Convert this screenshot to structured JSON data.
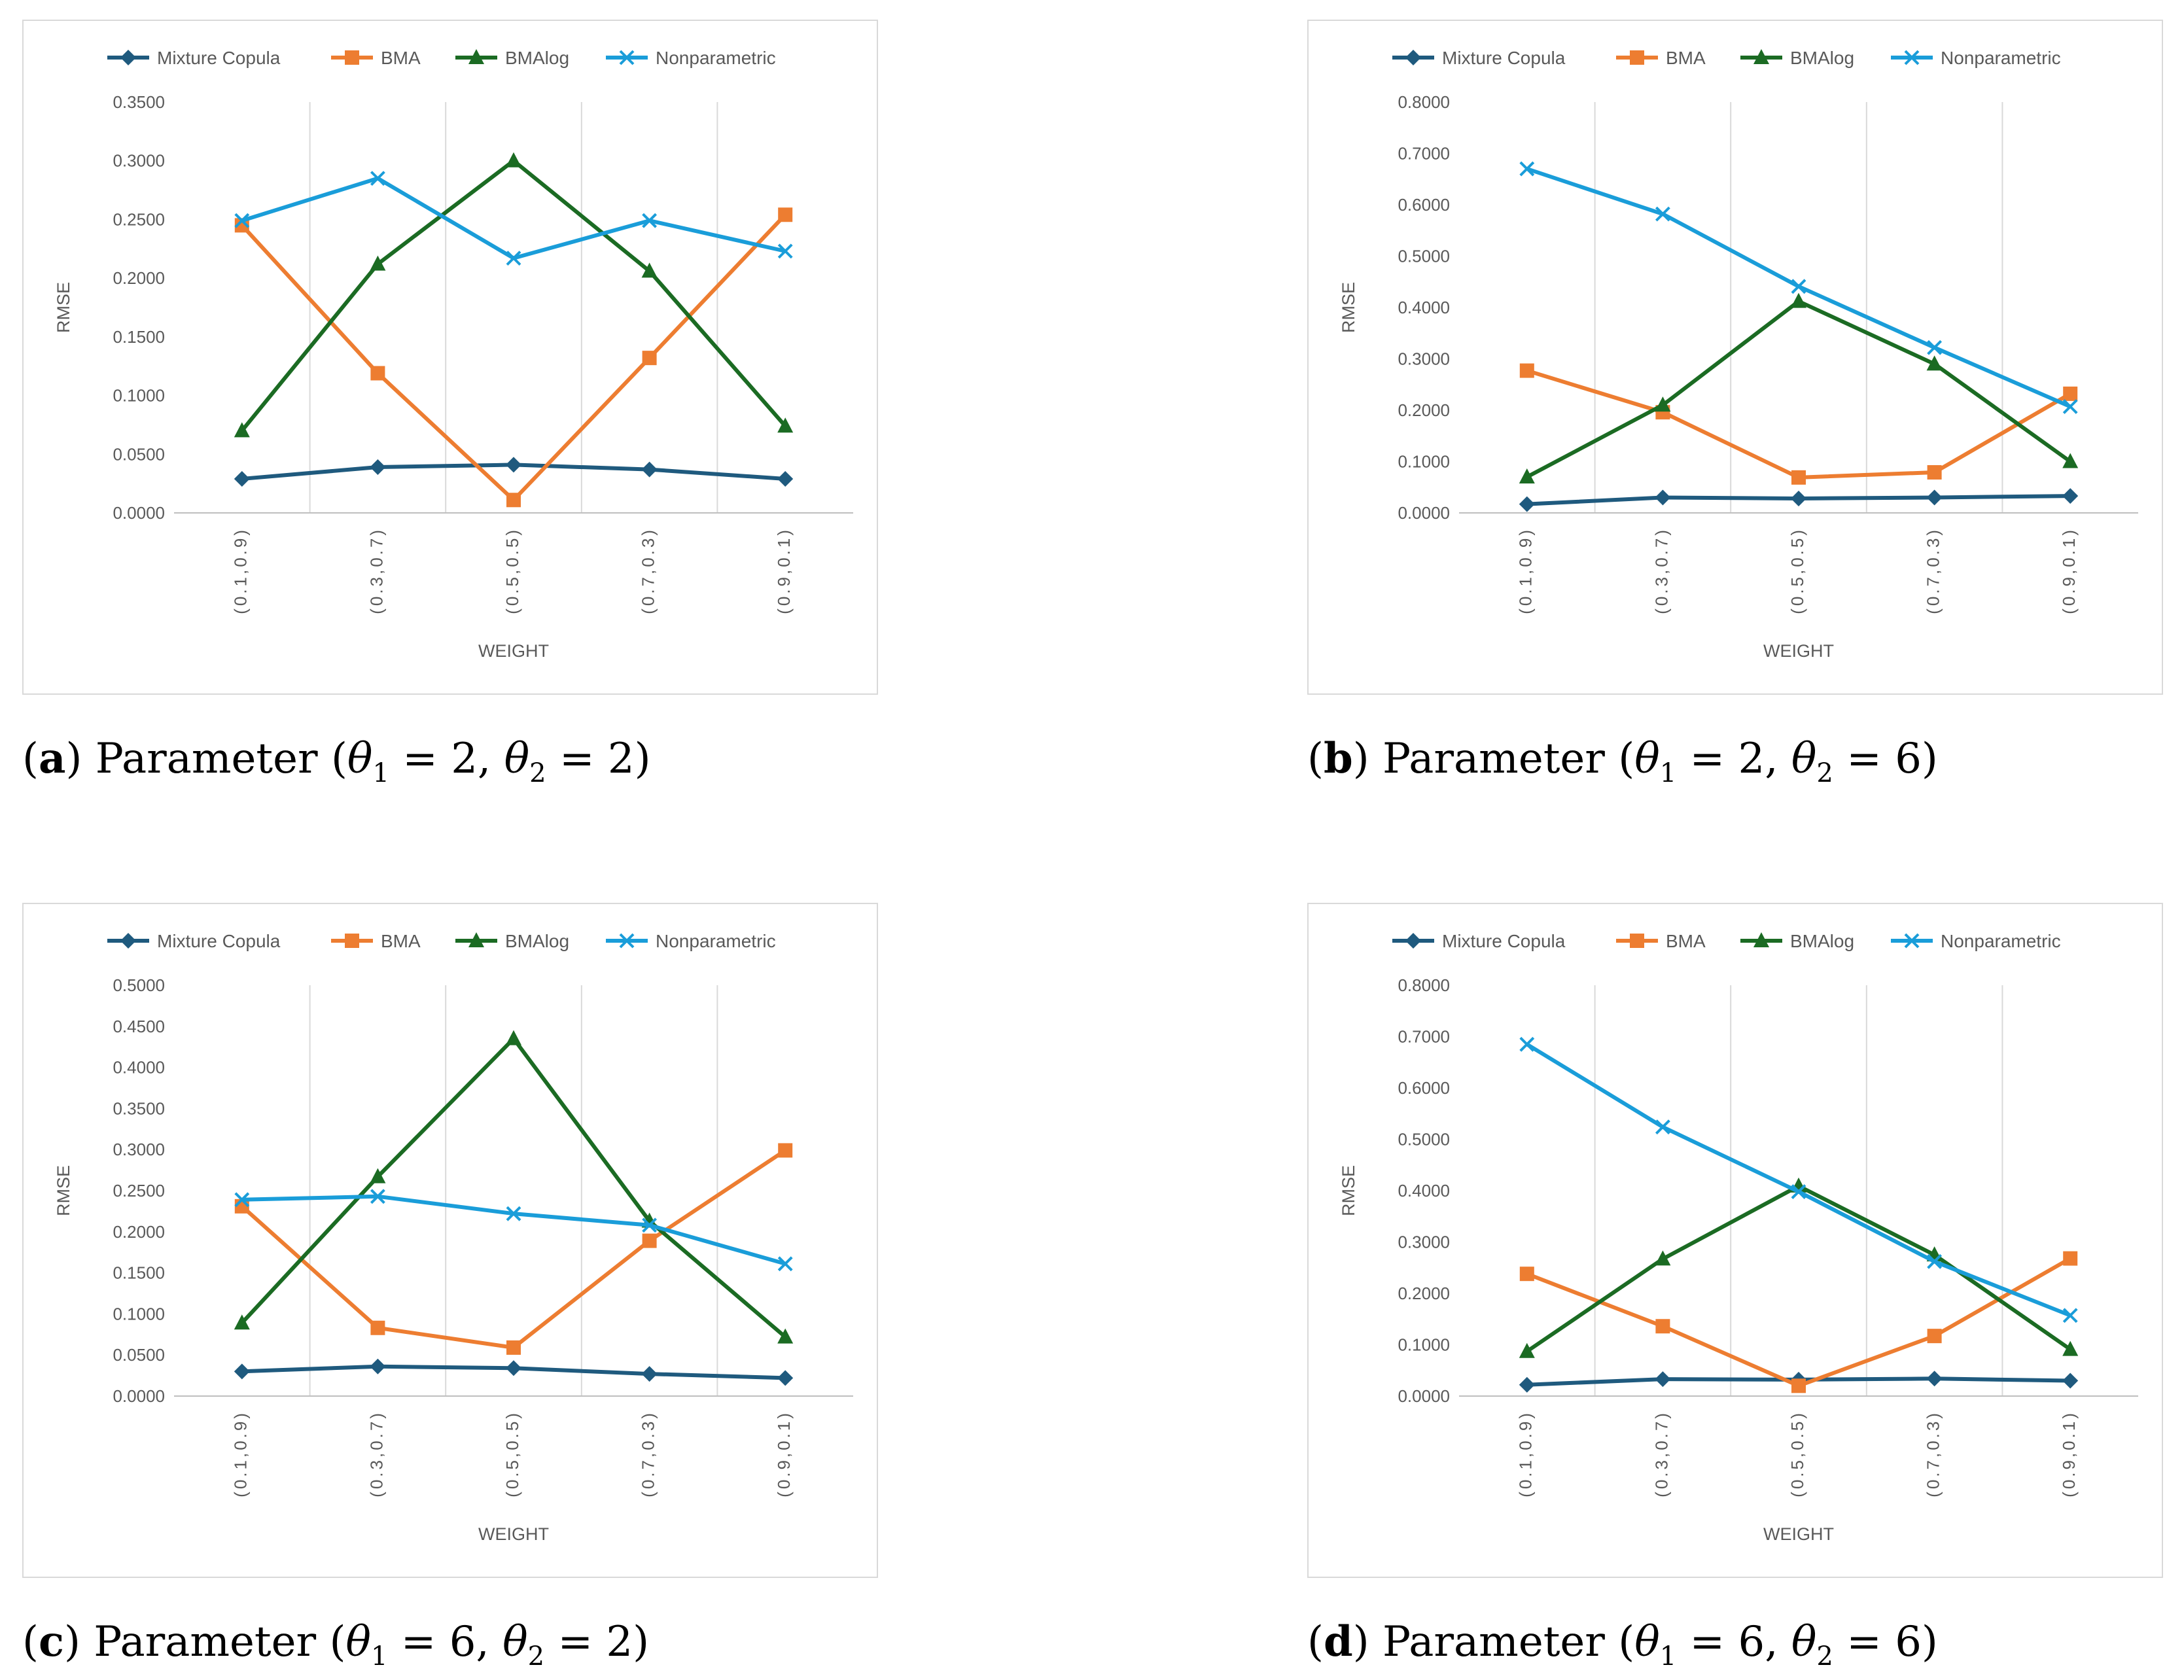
{
  "chart_data": [
    {
      "type": "line",
      "panel_letter": "a",
      "caption_text": "Parameter",
      "theta1_value": "2",
      "theta2_value": "2",
      "xlabel": "WEIGHT",
      "ylabel": "RMSE",
      "categories": [
        "(0.1,0.9)",
        "(0.3,0.7)",
        "(0.5,0.5)",
        "(0.7,0.3)",
        "(0.9,0.1)"
      ],
      "ylim": [
        0,
        0.35
      ],
      "yticks": [
        "0.0000",
        "0.0500",
        "0.1000",
        "0.1500",
        "0.2000",
        "0.2500",
        "0.3000",
        "0.3500"
      ],
      "legend": "top",
      "series": [
        {
          "name": "Mixture Copula",
          "marker": "diamond",
          "color": "#1f5a7e",
          "values": [
            0.029,
            0.039,
            0.041,
            0.037,
            0.029
          ]
        },
        {
          "name": "BMA",
          "marker": "square",
          "color": "#ed7d31",
          "values": [
            0.245,
            0.119,
            0.011,
            0.132,
            0.254
          ]
        },
        {
          "name": "BMAlog",
          "marker": "triangle",
          "color": "#1b6b23",
          "values": [
            0.07,
            0.212,
            0.3,
            0.206,
            0.074
          ]
        },
        {
          "name": "Nonparametric",
          "marker": "x",
          "color": "#1a9dd9",
          "values": [
            0.249,
            0.285,
            0.217,
            0.249,
            0.223
          ]
        }
      ]
    },
    {
      "type": "line",
      "panel_letter": "b",
      "caption_text": "Parameter",
      "theta1_value": "2",
      "theta2_value": "6",
      "xlabel": "WEIGHT",
      "ylabel": "RMSE",
      "categories": [
        "(0.1,0.9)",
        "(0.3,0.7)",
        "(0.5,0.5)",
        "(0.7,0.3)",
        "(0.9,0.1)"
      ],
      "ylim": [
        0,
        0.8
      ],
      "yticks": [
        "0.0000",
        "0.1000",
        "0.2000",
        "0.3000",
        "0.4000",
        "0.5000",
        "0.6000",
        "0.7000",
        "0.8000"
      ],
      "legend": "top",
      "series": [
        {
          "name": "Mixture Copula",
          "marker": "diamond",
          "color": "#1f5a7e",
          "values": [
            0.017,
            0.03,
            0.028,
            0.03,
            0.033
          ]
        },
        {
          "name": "BMA",
          "marker": "square",
          "color": "#ed7d31",
          "values": [
            0.277,
            0.196,
            0.069,
            0.079,
            0.232
          ]
        },
        {
          "name": "BMAlog",
          "marker": "triangle",
          "color": "#1b6b23",
          "values": [
            0.07,
            0.21,
            0.412,
            0.29,
            0.1
          ]
        },
        {
          "name": "Nonparametric",
          "marker": "x",
          "color": "#1a9dd9",
          "values": [
            0.67,
            0.582,
            0.441,
            0.322,
            0.207
          ]
        }
      ]
    },
    {
      "type": "line",
      "panel_letter": "c",
      "caption_text": "Parameter",
      "theta1_value": "6",
      "theta2_value": "2",
      "xlabel": "WEIGHT",
      "ylabel": "RMSE",
      "categories": [
        "(0.1,0.9)",
        "(0.3,0.7)",
        "(0.5,0.5)",
        "(0.7,0.3)",
        "(0.9,0.1)"
      ],
      "ylim": [
        0,
        0.5
      ],
      "yticks": [
        "0.0000",
        "0.0500",
        "0.1000",
        "0.1500",
        "0.2000",
        "0.2500",
        "0.3000",
        "0.3500",
        "0.4000",
        "0.4500",
        "0.5000"
      ],
      "legend": "top",
      "series": [
        {
          "name": "Mixture Copula",
          "marker": "diamond",
          "color": "#1f5a7e",
          "values": [
            0.03,
            0.036,
            0.034,
            0.027,
            0.022
          ]
        },
        {
          "name": "BMA",
          "marker": "square",
          "color": "#ed7d31",
          "values": [
            0.231,
            0.083,
            0.059,
            0.189,
            0.299
          ]
        },
        {
          "name": "BMAlog",
          "marker": "triangle",
          "color": "#1b6b23",
          "values": [
            0.089,
            0.267,
            0.435,
            0.213,
            0.072
          ]
        },
        {
          "name": "Nonparametric",
          "marker": "x",
          "color": "#1a9dd9",
          "values": [
            0.239,
            0.243,
            0.222,
            0.208,
            0.161
          ]
        }
      ]
    },
    {
      "type": "line",
      "panel_letter": "d",
      "caption_text": "Parameter",
      "theta1_value": "6",
      "theta2_value": "6",
      "xlabel": "WEIGHT",
      "ylabel": "RMSE",
      "categories": [
        "(0.1,0.9)",
        "(0.3,0.7)",
        "(0.5,0.5)",
        "(0.7,0.3)",
        "(0.9,0.1)"
      ],
      "ylim": [
        0,
        0.8
      ],
      "yticks": [
        "0.0000",
        "0.1000",
        "0.2000",
        "0.3000",
        "0.4000",
        "0.5000",
        "0.6000",
        "0.7000",
        "0.8000"
      ],
      "legend": "top",
      "series": [
        {
          "name": "Mixture Copula",
          "marker": "diamond",
          "color": "#1f5a7e",
          "values": [
            0.022,
            0.033,
            0.032,
            0.034,
            0.03
          ]
        },
        {
          "name": "BMA",
          "marker": "square",
          "color": "#ed7d31",
          "values": [
            0.238,
            0.136,
            0.02,
            0.117,
            0.268
          ]
        },
        {
          "name": "BMAlog",
          "marker": "triangle",
          "color": "#1b6b23",
          "values": [
            0.087,
            0.267,
            0.409,
            0.275,
            0.091
          ]
        },
        {
          "name": "Nonparametric",
          "marker": "x",
          "color": "#1a9dd9",
          "values": [
            0.685,
            0.524,
            0.398,
            0.262,
            0.157
          ]
        }
      ]
    }
  ]
}
